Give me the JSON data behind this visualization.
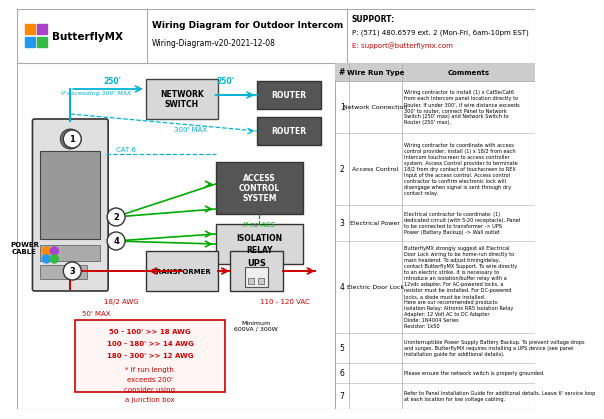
{
  "title": "Wiring Diagram for Outdoor Intercom",
  "subtitle": "Wiring-Diagram-v20-2021-12-08",
  "logo_text": "ButterflyMX",
  "support_line1": "SUPPORT:",
  "support_line2": "P: (571) 480.6579 ext. 2 (Mon-Fri, 6am-10pm EST)",
  "support_line3": "E: support@butterflymx.com",
  "bg_color": "#ffffff",
  "table_header_bg": "#cccccc",
  "cyan_color": "#00b4d4",
  "green_color": "#00aa00",
  "red_color": "#cc0000",
  "pink_box_border": "#cc0000",
  "pink_box_bg": "#fff5f5",
  "dark_box": "#555555",
  "light_box": "#d0d0d0",
  "logo_colors": [
    "#ff8800",
    "#aa44cc",
    "#2299ee",
    "#33bb44"
  ],
  "table_rows": [
    {
      "num": "1",
      "type": "Network Connection",
      "comment": "Wiring contractor to install (1) x Cat5e/Cat6\nfrom each Intercom panel location directly to\nRouter. If under 300', if wire distance exceeds\n300' to router, connect Panel to Network\nSwitch (250' max) and Network Switch to\nRouter (250' max)."
    },
    {
      "num": "2",
      "type": "Access Control",
      "comment": "Wiring contractor to coordinate with access\ncontrol provider, install (1) x 18/2 from each\nIntercom touchscreen to access controller\nsystem. Access Control provider to terminate\n18/2 from dry contact of touchscreen to REX\nInput of the access control. Access control\ncontractor to confirm electronic lock will\ndisengage when signal is sent through dry\ncontact relay."
    },
    {
      "num": "3",
      "type": "Electrical Power",
      "comment": "Electrical contractor to coordinate: (1)\ndedicated circuit (with 5-20 receptacle). Panel\nto be connected to transformer -> UPS\nPower (Battery Backup) -> Wall outlet"
    },
    {
      "num": "4",
      "type": "Electric Door Lock",
      "comment": "ButterflyMX strongly suggest all Electrical\nDoor Lock wiring to be home-run directly to\nmain headend. To adjust timing/delay,\ncontact ButterflyMX Support. To wire directly\nto an electric strike, it is necessary to\nintroduce an isolation/buffer relay with a\n12vdc adapter. For AC-powered locks, a\nresistor must be installed. For DC-powered\nlocks, a diode must be installed.\nHere are our recommended products:\nIsolation Relay: Altronix RR5 Isolation Relay\nAdapter: 12 Volt AC to DC Adapter\nDiode: 1N4004 Series\nResistor: 1k50"
    },
    {
      "num": "5",
      "type": "",
      "comment": "Uninterruptible Power Supply Battery Backup. To prevent voltage drops\nand surges, ButterflyMX requires installing a UPS device (see panel\ninstallation guide for additional details)."
    },
    {
      "num": "6",
      "type": "",
      "comment": "Please ensure the network switch is properly grounded."
    },
    {
      "num": "7",
      "type": "",
      "comment": "Refer to Panel Installation Guide for additional details. Leave 6' service loop\nat each location for low voltage cabling."
    }
  ]
}
